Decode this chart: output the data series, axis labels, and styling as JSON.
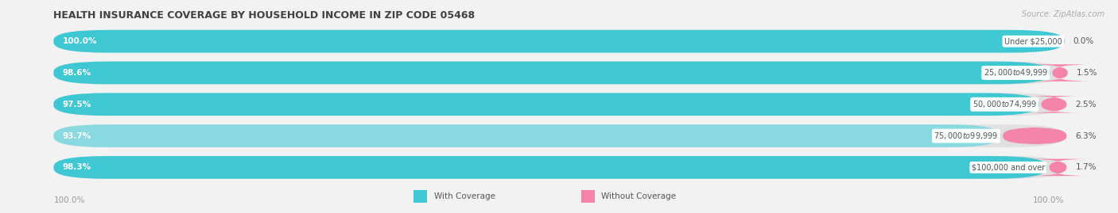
{
  "title": "HEALTH INSURANCE COVERAGE BY HOUSEHOLD INCOME IN ZIP CODE 05468",
  "source": "Source: ZipAtlas.com",
  "categories": [
    "Under $25,000",
    "$25,000 to $49,999",
    "$50,000 to $74,999",
    "$75,000 to $99,999",
    "$100,000 and over"
  ],
  "with_coverage": [
    100.0,
    98.6,
    97.5,
    93.7,
    98.3
  ],
  "without_coverage": [
    0.0,
    1.5,
    2.5,
    6.3,
    1.7
  ],
  "color_with": "#3ec8d3",
  "color_without": "#f484aa",
  "color_with_93": "#89d9e0",
  "bg_figure": "#f2f2f2",
  "bar_bg": "#e0e0e0",
  "title_color": "#404040",
  "label_color_bottom": "#999999",
  "text_white": "#ffffff",
  "text_dark": "#555555",
  "text_cat": "#555555",
  "legend_with": "With Coverage",
  "legend_without": "Without Coverage",
  "bottom_left_label": "100.0%",
  "bottom_right_label": "100.0%"
}
